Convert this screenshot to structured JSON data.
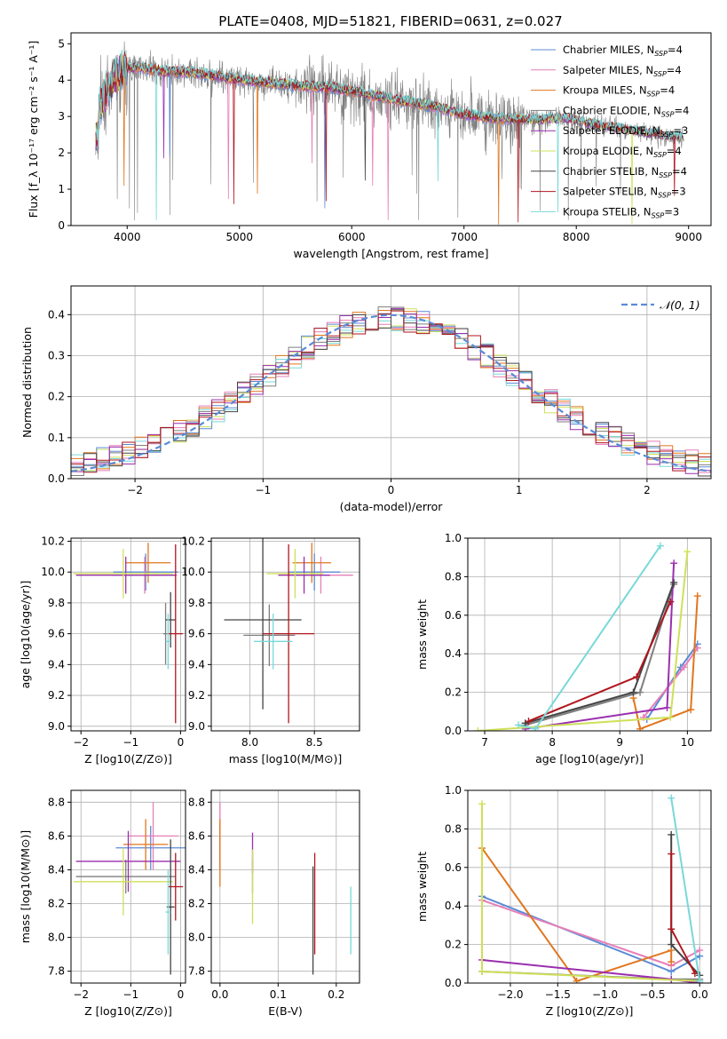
{
  "figure_title": "PLATE=0408, MJD=51821, FIBERID=0631, z=0.027",
  "colors": {
    "Chabrier MILES": "#5b8bd6",
    "Salpeter MILES": "#e67fb8",
    "Kroupa MILES": "#e0761e",
    "Chabrier ELODIE": "#7f7f7f",
    "Salpeter ELODIE": "#9b2fae",
    "Kroupa ELODIE": "#cfe05a",
    "Chabrier STELIB": "#444444",
    "Salpeter STELIB": "#b0161e",
    "Kroupa STELIB": "#79d8d8",
    "normal": "#5b8bd6"
  },
  "chart_data": [
    {
      "id": "spectrum",
      "type": "line",
      "xlabel": "wavelength [Angstrom, rest frame]",
      "ylabel": "Flux [f_λ 10⁻¹⁷ erg cm⁻² s⁻¹ A⁻¹]",
      "xlim": [
        3500,
        9200
      ],
      "ylim": [
        0,
        5.3
      ],
      "xticks": [
        "4000",
        "5000",
        "6000",
        "7000",
        "8000",
        "9000"
      ],
      "yticks": [
        "0",
        "1",
        "2",
        "3",
        "4",
        "5"
      ],
      "legend_position": "top-right",
      "legend": [
        "Chabrier MILES, N_SSP=4",
        "Salpeter MILES, N_SSP=4",
        "Kroupa MILES, N_SSP=4",
        "Chabrier ELODIE, N_SSP=4",
        "Salpeter ELODIE, N_SSP=3",
        "Kroupa ELODIE, N_SSP=4",
        "Chabrier STELIB, N_SSP=4",
        "Salpeter STELIB, N_SSP=3",
        "Kroupa STELIB, N_SSP=3"
      ],
      "series_order": [
        "Chabrier MILES",
        "Salpeter MILES",
        "Kroupa MILES",
        "Chabrier ELODIE",
        "Salpeter ELODIE",
        "Kroupa ELODIE",
        "Chabrier STELIB",
        "Salpeter STELIB",
        "Kroupa STELIB"
      ],
      "continuum": [
        [
          3750,
          3.3
        ],
        [
          3850,
          3.9
        ],
        [
          3950,
          4.3
        ],
        [
          4100,
          4.35
        ],
        [
          4300,
          4.25
        ],
        [
          4600,
          4.2
        ],
        [
          4900,
          4.05
        ],
        [
          5200,
          3.95
        ],
        [
          5500,
          3.85
        ],
        [
          5800,
          3.8
        ],
        [
          6100,
          3.65
        ],
        [
          6400,
          3.45
        ],
        [
          6700,
          3.3
        ],
        [
          7000,
          3.05
        ],
        [
          7300,
          2.95
        ],
        [
          7600,
          2.9
        ],
        [
          7900,
          2.95
        ],
        [
          8200,
          2.75
        ],
        [
          8500,
          2.6
        ],
        [
          8800,
          2.45
        ],
        [
          8950,
          2.45
        ]
      ],
      "data_range": [
        3720,
        7700
      ],
      "model_range_miles": [
        3720,
        7420
      ],
      "model_range_full": [
        3720,
        8950
      ]
    },
    {
      "id": "residuals",
      "type": "histogram",
      "xlabel": "(data-model)/error",
      "ylabel": "Normed distribution",
      "xlim": [
        -2.5,
        2.5
      ],
      "ylim": [
        0,
        0.47
      ],
      "xticks": [
        "−2",
        "−1",
        "0",
        "1",
        "2"
      ],
      "yticks": [
        "0.0",
        "0.1",
        "0.2",
        "0.3",
        "0.4"
      ],
      "legend": [
        "𝒩(0, 1)"
      ],
      "legend_position": "top-right",
      "bin_width": 0.1,
      "bin_start": -2.5
    },
    {
      "id": "age_vs_Z",
      "type": "errorbar",
      "xlabel": "Z [log10(Z/Z⊙)]",
      "ylabel": "age  [log10(age/yr)]",
      "xlim": [
        -2.2,
        0.1
      ],
      "ylim": [
        8.97,
        10.22
      ],
      "xticks": [
        "−2",
        "−1",
        "0"
      ],
      "yticks": [
        "9.0",
        "9.2",
        "9.4",
        "9.6",
        "9.8",
        "10.0",
        "10.2"
      ],
      "points": [
        {
          "s": "Chabrier MILES",
          "x": -0.7,
          "y": 10.0,
          "xe": 0.65,
          "ye": 0.12
        },
        {
          "s": "Salpeter MILES",
          "x": -0.72,
          "y": 9.98,
          "xe": 0.65,
          "ye": 0.12
        },
        {
          "s": "Kroupa MILES",
          "x": -0.65,
          "y": 10.06,
          "xe": 0.45,
          "ye": 0.13
        },
        {
          "s": "Chabrier ELODIE",
          "x": -0.3,
          "y": 9.6,
          "xe": 0.05,
          "ye": 0.2
        },
        {
          "s": "Salpeter ELODIE",
          "x": -1.1,
          "y": 9.98,
          "xe": 1.0,
          "ye": 0.12
        },
        {
          "s": "Kroupa ELODIE",
          "x": -1.15,
          "y": 9.99,
          "xe": 1.0,
          "ye": 0.16
        },
        {
          "s": "Chabrier STELIB",
          "x": -0.2,
          "y": 9.69,
          "xe": 0.1,
          "ye": 0.18
        },
        {
          "s": "Salpeter STELIB",
          "x": -0.1,
          "y": 9.6,
          "xe": 0.15,
          "ye": 0.58
        },
        {
          "s": "Kroupa STELIB",
          "x": -0.25,
          "y": 9.55,
          "xe": 0.05,
          "ye": 0.18
        }
      ]
    },
    {
      "id": "age_vs_mass",
      "type": "errorbar",
      "xlabel": "mass [log10(M/M⊙)]",
      "ylabel": "",
      "xlim": [
        7.7,
        8.85
      ],
      "ylim": [
        8.97,
        10.22
      ],
      "xticks": [
        "8.0",
        "8.5"
      ],
      "yticks": [
        "9.0",
        "9.2",
        "9.4",
        "9.6",
        "9.8",
        "10.0",
        "10.2"
      ],
      "points": [
        {
          "s": "Chabrier MILES",
          "x": 8.5,
          "y": 10.0,
          "xe": 0.2,
          "ye": 0.12
        },
        {
          "s": "Salpeter MILES",
          "x": 8.55,
          "y": 9.98,
          "xe": 0.25,
          "ye": 0.12
        },
        {
          "s": "Kroupa MILES",
          "x": 8.48,
          "y": 10.06,
          "xe": 0.15,
          "ye": 0.13
        },
        {
          "s": "Chabrier ELODIE",
          "x": 8.15,
          "y": 9.59,
          "xe": 0.2,
          "ye": 0.2
        },
        {
          "s": "Salpeter ELODIE",
          "x": 8.42,
          "y": 9.98,
          "xe": 0.2,
          "ye": 0.12
        },
        {
          "s": "Kroupa ELODIE",
          "x": 8.35,
          "y": 9.99,
          "xe": 0.22,
          "ye": 0.16
        },
        {
          "s": "Chabrier STELIB",
          "x": 8.1,
          "y": 9.69,
          "xe": 0.3,
          "ye": 0.58
        },
        {
          "s": "Salpeter STELIB",
          "x": 8.3,
          "y": 9.6,
          "xe": 0.2,
          "ye": 0.58
        },
        {
          "s": "Kroupa STELIB",
          "x": 8.18,
          "y": 9.55,
          "xe": 0.15,
          "ye": 0.18
        }
      ]
    },
    {
      "id": "weight_vs_age",
      "type": "line",
      "xlabel": "age  [log10(age/yr)]",
      "ylabel": "mass weight",
      "xlim": [
        6.75,
        10.35
      ],
      "ylim": [
        0,
        1.0
      ],
      "xticks": [
        "7",
        "8",
        "9",
        "10"
      ],
      "yticks": [
        "0.0",
        "0.2",
        "0.4",
        "0.6",
        "0.8",
        "1.0"
      ],
      "series": [
        {
          "name": "Chabrier MILES",
          "x": [
            9.4,
            9.9,
            10.15
          ],
          "y": [
            0.06,
            0.33,
            0.45
          ]
        },
        {
          "name": "Salpeter MILES",
          "x": [
            9.35,
            9.95,
            10.15
          ],
          "y": [
            0.07,
            0.33,
            0.43
          ]
        },
        {
          "name": "Kroupa MILES",
          "x": [
            9.2,
            9.3,
            10.05,
            10.15
          ],
          "y": [
            0.17,
            0.01,
            0.11,
            0.7
          ]
        },
        {
          "name": "Chabrier ELODIE",
          "x": [
            7.6,
            9.3,
            9.8
          ],
          "y": [
            0.03,
            0.2,
            0.76
          ]
        },
        {
          "name": "Salpeter ELODIE",
          "x": [
            7.6,
            9.7,
            9.8
          ],
          "y": [
            0.01,
            0.12,
            0.87
          ]
        },
        {
          "name": "Kroupa ELODIE",
          "x": [
            6.9,
            9.75,
            10.0
          ],
          "y": [
            0.0,
            0.07,
            0.93
          ]
        },
        {
          "name": "Chabrier STELIB",
          "x": [
            7.6,
            9.2,
            9.8
          ],
          "y": [
            0.04,
            0.2,
            0.77
          ]
        },
        {
          "name": "Salpeter STELIB",
          "x": [
            7.65,
            9.25,
            9.75
          ],
          "y": [
            0.05,
            0.28,
            0.67
          ]
        },
        {
          "name": "Kroupa STELIB",
          "x": [
            7.5,
            7.75,
            9.6
          ],
          "y": [
            0.03,
            0.01,
            0.96
          ]
        }
      ]
    },
    {
      "id": "mass_vs_Z",
      "type": "errorbar",
      "xlabel": "Z [log10(Z/Z⊙)]",
      "ylabel": "mass [log10(M/M⊙)]",
      "xlim": [
        -2.2,
        0.1
      ],
      "ylim": [
        7.73,
        8.87
      ],
      "xticks": [
        "−2",
        "−1",
        "0"
      ],
      "yticks": [
        "7.8",
        "8.0",
        "8.2",
        "8.4",
        "8.6",
        "8.8"
      ],
      "points": [
        {
          "s": "Chabrier MILES",
          "x": -0.6,
          "y": 8.53,
          "xe": 0.7,
          "ye": 0.13
        },
        {
          "s": "Salpeter MILES",
          "x": -0.55,
          "y": 8.6,
          "xe": 0.5,
          "ye": 0.2
        },
        {
          "s": "Kroupa MILES",
          "x": -0.7,
          "y": 8.55,
          "xe": 0.45,
          "ye": 0.15
        },
        {
          "s": "Chabrier ELODIE",
          "x": -1.1,
          "y": 8.36,
          "xe": 1.0,
          "ye": 0.1
        },
        {
          "s": "Salpeter ELODIE",
          "x": -1.05,
          "y": 8.45,
          "xe": 1.05,
          "ye": 0.18
        },
        {
          "s": "Kroupa ELODIE",
          "x": -1.15,
          "y": 8.33,
          "xe": 1.0,
          "ye": 0.2
        },
        {
          "s": "Chabrier STELIB",
          "x": -0.2,
          "y": 8.18,
          "xe": 0.08,
          "ye": 0.4
        },
        {
          "s": "Salpeter STELIB",
          "x": -0.1,
          "y": 8.3,
          "xe": 0.15,
          "ye": 0.2
        },
        {
          "s": "Kroupa STELIB",
          "x": -0.25,
          "y": 8.15,
          "xe": 0.05,
          "ye": 0.25
        }
      ]
    },
    {
      "id": "mass_vs_EBV",
      "type": "errorbar",
      "xlabel": "E(B-V)",
      "ylabel": "",
      "xlim": [
        -0.015,
        0.24
      ],
      "ylim": [
        7.73,
        8.87
      ],
      "xticks": [
        "0.0",
        "0.1",
        "0.2"
      ],
      "yticks": [
        "7.8",
        "8.0",
        "8.2",
        "8.4",
        "8.6",
        "8.8"
      ],
      "points": [
        {
          "s": "Chabrier MILES",
          "x": 0.0,
          "y": 8.53,
          "xe": 0,
          "ye": 0.13
        },
        {
          "s": "Salpeter MILES",
          "x": 0.0,
          "y": 8.6,
          "xe": 0,
          "ye": 0.2
        },
        {
          "s": "Kroupa MILES",
          "x": 0.0,
          "y": 8.5,
          "xe": 0,
          "ye": 0.2
        },
        {
          "s": "Chabrier ELODIE",
          "x": 0.056,
          "y": 8.36,
          "xe": 0,
          "ye": 0.1
        },
        {
          "s": "Salpeter ELODIE",
          "x": 0.056,
          "y": 8.5,
          "xe": 0,
          "ye": 0.12
        },
        {
          "s": "Kroupa ELODIE",
          "x": 0.056,
          "y": 8.3,
          "xe": 0,
          "ye": 0.22
        },
        {
          "s": "Chabrier STELIB",
          "x": 0.16,
          "y": 8.1,
          "xe": 0,
          "ye": 0.32
        },
        {
          "s": "Salpeter STELIB",
          "x": 0.163,
          "y": 8.2,
          "xe": 0,
          "ye": 0.3
        },
        {
          "s": "Kroupa STELIB",
          "x": 0.225,
          "y": 8.1,
          "xe": 0,
          "ye": 0.2
        }
      ]
    },
    {
      "id": "weight_vs_Z",
      "type": "line",
      "xlabel": "Z [log10(Z/Z⊙)]",
      "ylabel": "mass weight",
      "xlim": [
        -2.45,
        0.12
      ],
      "ylim": [
        0,
        1.0
      ],
      "xticks": [
        "−2.0",
        "−1.5",
        "−1.0",
        "−0.5",
        "0.0"
      ],
      "yticks": [
        "0.0",
        "0.2",
        "0.4",
        "0.6",
        "0.8",
        "1.0"
      ],
      "series": [
        {
          "name": "Chabrier MILES",
          "x": [
            -2.3,
            -0.3,
            0.0
          ],
          "y": [
            0.45,
            0.06,
            0.14
          ]
        },
        {
          "name": "Salpeter MILES",
          "x": [
            -2.3,
            -0.3,
            0.0
          ],
          "y": [
            0.43,
            0.09,
            0.17
          ]
        },
        {
          "name": "Kroupa MILES",
          "x": [
            -2.3,
            -1.3,
            -0.3,
            -0.3
          ],
          "y": [
            0.7,
            0.01,
            0.17,
            0.11
          ]
        },
        {
          "name": "Chabrier ELODIE",
          "x": [
            -2.3,
            -0.3,
            0.0
          ],
          "y": [
            0.06,
            0.02,
            0.02
          ]
        },
        {
          "name": "Salpeter ELODIE",
          "x": [
            -2.3,
            -0.3,
            0.0
          ],
          "y": [
            0.12,
            0.02,
            0.0
          ]
        },
        {
          "name": "Kroupa ELODIE",
          "x": [
            -2.3,
            -2.3,
            0.0
          ],
          "y": [
            0.93,
            0.06,
            0.01
          ]
        },
        {
          "name": "Chabrier STELIB",
          "x": [
            -0.3,
            -0.3,
            0.0
          ],
          "y": [
            0.77,
            0.2,
            0.04
          ]
        },
        {
          "name": "Salpeter STELIB",
          "x": [
            -0.3,
            -0.3,
            -0.05
          ],
          "y": [
            0.67,
            0.28,
            0.05
          ]
        },
        {
          "name": "Kroupa STELIB",
          "x": [
            -0.3,
            0.0,
            0.0
          ],
          "y": [
            0.96,
            0.01,
            0.01
          ]
        }
      ]
    }
  ]
}
